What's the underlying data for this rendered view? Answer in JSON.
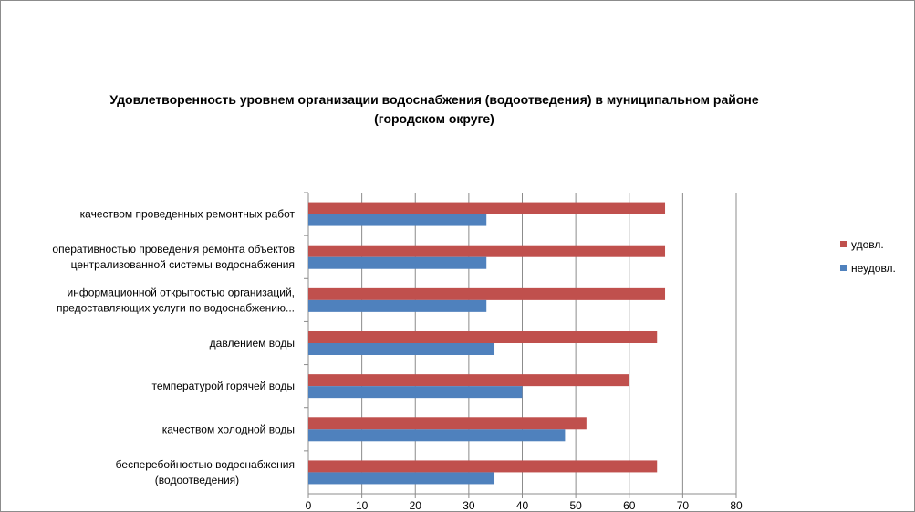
{
  "chart_data": {
    "type": "bar",
    "orientation": "horizontal",
    "title_lines": [
      "Удовлетворенность уровнем организации водоснабжения (водоотведения) в муниципальном районе",
      "(городском округе)"
    ],
    "categories": [
      [
        "качеством проведенных ремонтных работ"
      ],
      [
        "оперативностью проведения ремонта объектов",
        "централизованной системы водоснабжения"
      ],
      [
        "информационной открытостью организаций,",
        "предоставляющих услуги по водоснабжению..."
      ],
      [
        "давлением воды"
      ],
      [
        "температурой горячей воды"
      ],
      [
        "качеством холодной воды"
      ],
      [
        "бесперебойностью водоснабжения",
        "(водоотведения)"
      ]
    ],
    "series": [
      {
        "name": "удовл.",
        "color": "#c0504d",
        "values": [
          66.7,
          66.7,
          66.7,
          65.2,
          60,
          52,
          65.2
        ]
      },
      {
        "name": "неудовл.",
        "color": "#4f81bd",
        "values": [
          33.3,
          33.3,
          33.3,
          34.8,
          40,
          48,
          34.8
        ]
      }
    ],
    "xlim": [
      0,
      80
    ],
    "xticks": [
      0,
      10,
      20,
      30,
      40,
      50,
      60,
      70,
      80
    ],
    "xlabel": "",
    "ylabel": "",
    "grid": "vertical",
    "legend": "right"
  }
}
